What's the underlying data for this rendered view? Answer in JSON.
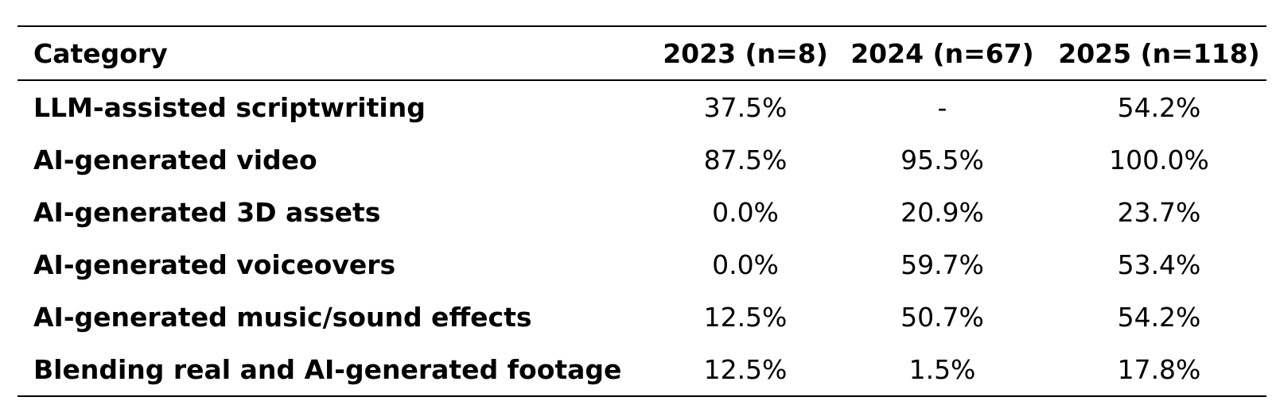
{
  "table": {
    "headers": [
      "Category",
      "2023 (n=8)",
      "2024 (n=67)",
      "2025 (n=118)"
    ],
    "rows": [
      {
        "category": "LLM-assisted scriptwriting",
        "y2023": "37.5%",
        "y2024": "-",
        "y2025": "54.2%"
      },
      {
        "category": "AI-generated video",
        "y2023": "87.5%",
        "y2024": "95.5%",
        "y2025": "100.0%"
      },
      {
        "category": "AI-generated 3D assets",
        "y2023": "0.0%",
        "y2024": "20.9%",
        "y2025": "23.7%"
      },
      {
        "category": "AI-generated voiceovers",
        "y2023": "0.0%",
        "y2024": "59.7%",
        "y2025": "53.4%"
      },
      {
        "category": "AI-generated music/sound effects",
        "y2023": "12.5%",
        "y2024": "50.7%",
        "y2025": "54.2%"
      },
      {
        "category": "Blending real and AI-generated footage",
        "y2023": "12.5%",
        "y2024": "1.5%",
        "y2025": "17.8%"
      }
    ]
  }
}
